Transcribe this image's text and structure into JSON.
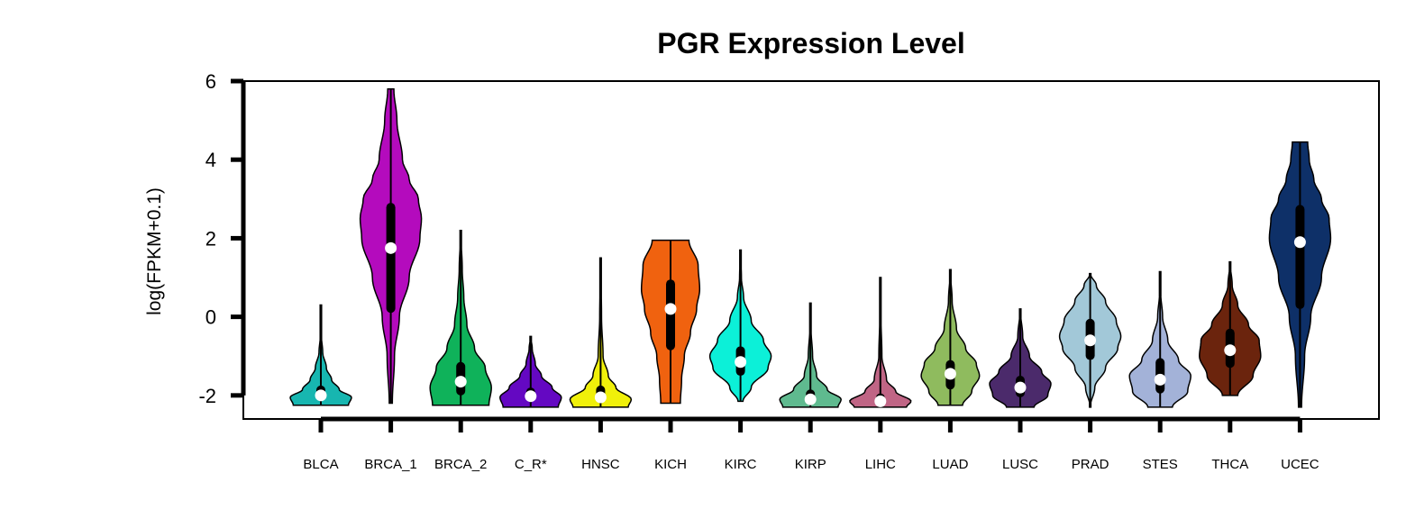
{
  "chart_data": {
    "type": "violin",
    "title": "PGR Expression Level",
    "xlabel": "",
    "ylabel": "log(FPKM+0.1)",
    "ylim": [
      -2.6,
      6.0
    ],
    "yticks": [
      -2,
      0,
      2,
      4,
      6
    ],
    "ytick_labels": [
      "-2",
      "0",
      "2",
      "4",
      "6"
    ],
    "grid": false,
    "legend": "none",
    "categories": [
      "BLCA",
      "BRCA_1",
      "BRCA_2",
      "C_R*",
      "HNSC",
      "KICH",
      "KIRC",
      "KIRP",
      "LIHC",
      "LUAD",
      "LUSC",
      "PRAD",
      "STES",
      "THCA",
      "UCEC"
    ],
    "series": [
      {
        "category": "BLCA",
        "color": "#17b6b0",
        "min": -2.25,
        "max": 0.3,
        "q1": -2.1,
        "q3": -1.75,
        "median": -2.0,
        "profile": [
          [
            -2.25,
            0.9
          ],
          [
            -2.05,
            1.0
          ],
          [
            -1.85,
            0.6
          ],
          [
            -1.6,
            0.35
          ],
          [
            -1.3,
            0.18
          ],
          [
            -0.9,
            0.06
          ],
          [
            -0.5,
            0.02
          ],
          [
            0.3,
            0.0
          ]
        ]
      },
      {
        "category": "BRCA_1",
        "color": "#b40bbd",
        "min": -2.2,
        "max": 5.8,
        "q1": 0.1,
        "q3": 2.9,
        "median": 1.75,
        "profile": [
          [
            -2.2,
            0.05
          ],
          [
            -1.0,
            0.12
          ],
          [
            0.0,
            0.28
          ],
          [
            1.0,
            0.6
          ],
          [
            2.0,
            0.95
          ],
          [
            2.5,
            1.0
          ],
          [
            3.0,
            0.9
          ],
          [
            3.5,
            0.6
          ],
          [
            4.0,
            0.38
          ],
          [
            5.0,
            0.2
          ],
          [
            5.8,
            0.1
          ]
        ]
      },
      {
        "category": "BRCA_2",
        "color": "#0fb25a",
        "min": -2.25,
        "max": 2.2,
        "q1": -2.0,
        "q3": -1.15,
        "median": -1.65,
        "profile": [
          [
            -2.25,
            0.92
          ],
          [
            -1.8,
            1.0
          ],
          [
            -1.3,
            0.8
          ],
          [
            -0.8,
            0.45
          ],
          [
            -0.2,
            0.2
          ],
          [
            0.5,
            0.1
          ],
          [
            1.2,
            0.05
          ],
          [
            2.2,
            0.0
          ]
        ]
      },
      {
        "category": "C_R*",
        "color": "#6408c2",
        "min": -2.3,
        "max": -0.5,
        "q1": -2.15,
        "q3": -1.8,
        "median": -2.02,
        "profile": [
          [
            -2.3,
            0.9
          ],
          [
            -2.05,
            1.0
          ],
          [
            -1.8,
            0.7
          ],
          [
            -1.5,
            0.35
          ],
          [
            -1.2,
            0.15
          ],
          [
            -0.8,
            0.05
          ],
          [
            -0.5,
            0.0
          ]
        ]
      },
      {
        "category": "HNSC",
        "color": "#f0f00a",
        "min": -2.3,
        "max": 1.5,
        "q1": -2.2,
        "q3": -1.75,
        "median": -2.05,
        "profile": [
          [
            -2.3,
            0.9
          ],
          [
            -2.1,
            1.0
          ],
          [
            -1.8,
            0.5
          ],
          [
            -1.5,
            0.25
          ],
          [
            -1.0,
            0.08
          ],
          [
            0.0,
            0.03
          ],
          [
            1.5,
            0.0
          ]
        ]
      },
      {
        "category": "KICH",
        "color": "#f0620f",
        "min": -2.2,
        "max": 1.95,
        "q1": -0.85,
        "q3": 0.95,
        "median": 0.2,
        "profile": [
          [
            -2.2,
            0.32
          ],
          [
            -1.6,
            0.36
          ],
          [
            -1.0,
            0.45
          ],
          [
            -0.4,
            0.65
          ],
          [
            0.2,
            0.85
          ],
          [
            0.7,
            0.95
          ],
          [
            1.3,
            0.9
          ],
          [
            1.95,
            0.6
          ]
        ]
      },
      {
        "category": "KIRC",
        "color": "#0cf0d8",
        "min": -2.15,
        "max": 1.7,
        "q1": -1.5,
        "q3": -0.75,
        "median": -1.15,
        "profile": [
          [
            -2.15,
            0.08
          ],
          [
            -1.8,
            0.35
          ],
          [
            -1.3,
            0.9
          ],
          [
            -1.0,
            1.0
          ],
          [
            -0.6,
            0.75
          ],
          [
            -0.1,
            0.35
          ],
          [
            0.5,
            0.1
          ],
          [
            1.0,
            0.03
          ],
          [
            1.7,
            0.0
          ]
        ]
      },
      {
        "category": "KIRP",
        "color": "#5fba8f",
        "min": -2.3,
        "max": 0.35,
        "q1": -2.2,
        "q3": -1.85,
        "median": -2.1,
        "profile": [
          [
            -2.3,
            0.9
          ],
          [
            -2.1,
            1.0
          ],
          [
            -1.85,
            0.55
          ],
          [
            -1.5,
            0.2
          ],
          [
            -1.0,
            0.07
          ],
          [
            -0.3,
            0.02
          ],
          [
            0.35,
            0.0
          ]
        ]
      },
      {
        "category": "LIHC",
        "color": "#c06585",
        "min": -2.3,
        "max": 1.0,
        "q1": -2.25,
        "q3": -1.95,
        "median": -2.15,
        "profile": [
          [
            -2.3,
            0.85
          ],
          [
            -2.15,
            1.0
          ],
          [
            -1.9,
            0.5
          ],
          [
            -1.6,
            0.2
          ],
          [
            -1.0,
            0.05
          ],
          [
            0.0,
            0.02
          ],
          [
            1.0,
            0.0
          ]
        ]
      },
      {
        "category": "LUAD",
        "color": "#8fbb5e",
        "min": -2.25,
        "max": 1.2,
        "q1": -1.85,
        "q3": -1.1,
        "median": -1.45,
        "profile": [
          [
            -2.25,
            0.4
          ],
          [
            -1.9,
            0.7
          ],
          [
            -1.5,
            0.95
          ],
          [
            -1.2,
            0.85
          ],
          [
            -0.8,
            0.5
          ],
          [
            -0.3,
            0.2
          ],
          [
            0.4,
            0.06
          ],
          [
            1.2,
            0.0
          ]
        ]
      },
      {
        "category": "LUSC",
        "color": "#4b2a6b",
        "min": -2.3,
        "max": 0.2,
        "q1": -2.05,
        "q3": -1.5,
        "median": -1.8,
        "profile": [
          [
            -2.3,
            0.45
          ],
          [
            -2.0,
            0.9
          ],
          [
            -1.7,
            1.0
          ],
          [
            -1.4,
            0.7
          ],
          [
            -1.0,
            0.3
          ],
          [
            -0.5,
            0.08
          ],
          [
            0.2,
            0.0
          ]
        ]
      },
      {
        "category": "PRAD",
        "color": "#a2c8d8",
        "min": -2.3,
        "max": 1.1,
        "q1": -1.1,
        "q3": -0.05,
        "median": -0.6,
        "profile": [
          [
            -2.3,
            0.0
          ],
          [
            -1.8,
            0.15
          ],
          [
            -1.3,
            0.5
          ],
          [
            -0.8,
            0.9
          ],
          [
            -0.5,
            1.0
          ],
          [
            -0.1,
            0.85
          ],
          [
            0.4,
            0.5
          ],
          [
            0.8,
            0.2
          ],
          [
            1.1,
            0.0
          ]
        ]
      },
      {
        "category": "STES",
        "color": "#a3b2d8",
        "min": -2.3,
        "max": 1.15,
        "q1": -1.95,
        "q3": -1.05,
        "median": -1.6,
        "profile": [
          [
            -2.3,
            0.4
          ],
          [
            -1.9,
            0.9
          ],
          [
            -1.5,
            1.0
          ],
          [
            -1.1,
            0.6
          ],
          [
            -0.6,
            0.25
          ],
          [
            0.0,
            0.08
          ],
          [
            0.6,
            0.02
          ],
          [
            1.15,
            0.0
          ]
        ]
      },
      {
        "category": "THCA",
        "color": "#6b240d",
        "min": -2.0,
        "max": 1.4,
        "q1": -1.3,
        "q3": -0.3,
        "median": -0.85,
        "profile": [
          [
            -2.0,
            0.25
          ],
          [
            -1.5,
            0.75
          ],
          [
            -1.0,
            1.0
          ],
          [
            -0.6,
            0.95
          ],
          [
            -0.2,
            0.6
          ],
          [
            0.3,
            0.25
          ],
          [
            0.8,
            0.07
          ],
          [
            1.4,
            0.0
          ]
        ]
      },
      {
        "category": "UCEC",
        "color": "#0e3068",
        "min": -2.3,
        "max": 4.45,
        "q1": 0.2,
        "q3": 2.85,
        "median": 1.9,
        "profile": [
          [
            -2.3,
            0.05
          ],
          [
            -1.0,
            0.15
          ],
          [
            0.0,
            0.35
          ],
          [
            1.0,
            0.7
          ],
          [
            2.0,
            1.0
          ],
          [
            2.5,
            0.95
          ],
          [
            3.0,
            0.7
          ],
          [
            3.5,
            0.45
          ],
          [
            4.0,
            0.3
          ],
          [
            4.45,
            0.25
          ]
        ]
      }
    ]
  }
}
